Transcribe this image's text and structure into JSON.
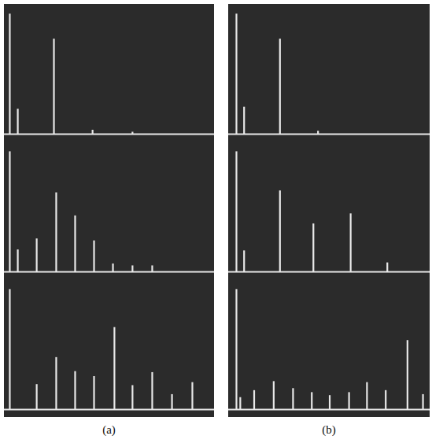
{
  "chart_data": [
    {
      "type": "stem",
      "title": "(a)",
      "xlim": [
        0,
        100
      ],
      "ylim": [
        0,
        125
      ],
      "tick_labels": false,
      "color": "#e8e8e8",
      "series": [
        {
          "x": [
            2.6,
            6.4,
            23.6,
            42,
            61
          ],
          "values": [
            120,
            25,
            95,
            4,
            2
          ]
        },
        {
          "x": [
            2.6,
            6.4,
            15.4,
            24.7,
            33.7,
            42.7,
            51.7,
            61,
            70.4
          ],
          "values": [
            120,
            22,
            33,
            79,
            56,
            31,
            8,
            6,
            6
          ]
        },
        {
          "x": [
            2.6,
            15.4,
            24.7,
            33.7,
            42.7,
            52.4,
            61,
            70.4,
            79.8,
            89.5
          ],
          "values": [
            120,
            25,
            52,
            38,
            33,
            82,
            24,
            37,
            15,
            27
          ]
        }
      ]
    },
    {
      "type": "stem",
      "title": "(b)",
      "xlim": [
        0,
        100
      ],
      "ylim": [
        0,
        125
      ],
      "tick_labels": false,
      "color": "#e8e8e8",
      "series": [
        {
          "x": [
            3.9,
            7.7,
            25.5,
            44.4
          ],
          "values": [
            120,
            27,
            95,
            3
          ]
        },
        {
          "x": [
            3.9,
            7.7,
            25.5,
            42.1,
            60.6,
            78.8
          ],
          "values": [
            120,
            21,
            81,
            48,
            58,
            9
          ]
        },
        {
          "x": [
            3.9,
            5.8,
            12.7,
            22.4,
            32,
            41.3,
            50.2,
            59.8,
            68.7,
            78,
            88.8,
            96.5
          ],
          "values": [
            120,
            12,
            19,
            28,
            21,
            17,
            14,
            17,
            27,
            19,
            69,
            15
          ]
        }
      ]
    }
  ]
}
